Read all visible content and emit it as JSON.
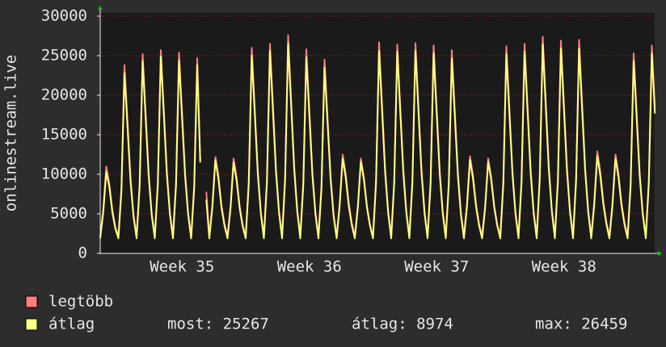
{
  "chart_data": {
    "type": "line",
    "y_label": "onlinestream.live",
    "ylim": [
      0,
      30000
    ],
    "yticks": [
      0,
      5000,
      10000,
      15000,
      20000,
      25000,
      30000
    ],
    "grid": true,
    "categories": [
      null,
      null,
      null,
      null,
      null,
      null,
      null,
      null,
      null,
      null,
      null,
      null,
      null,
      null,
      null,
      null,
      null,
      null,
      null,
      null,
      null,
      null,
      null,
      null,
      null,
      null,
      null,
      "Week 35",
      null,
      null,
      null,
      null,
      null,
      null,
      null,
      null,
      null,
      null,
      null,
      null,
      null,
      null,
      null,
      null,
      null,
      null,
      null,
      null,
      null,
      null,
      null,
      null,
      null,
      null,
      null,
      null,
      null,
      null,
      null,
      null,
      null,
      null,
      null,
      null,
      null,
      null,
      null,
      null,
      null,
      "Week 36",
      null,
      null,
      null,
      null,
      null,
      null,
      null,
      null,
      null,
      null,
      null,
      null,
      null,
      null,
      null,
      null,
      null,
      null,
      null,
      null,
      null,
      null,
      null,
      null,
      null,
      null,
      null,
      null,
      null,
      null,
      null,
      null,
      null,
      null,
      null,
      null,
      null,
      null,
      null,
      null,
      null,
      "Week 37",
      null,
      null,
      null,
      null,
      null,
      null,
      null,
      null,
      null,
      null,
      null,
      null,
      null,
      null,
      null,
      null,
      null,
      null,
      null,
      null,
      null,
      null,
      null,
      null,
      null,
      null,
      null,
      null,
      null,
      null,
      null,
      null,
      null,
      null,
      null,
      null,
      null,
      null,
      null,
      null,
      null,
      "Week 38",
      null,
      null,
      null,
      null,
      null,
      null,
      null,
      null,
      null,
      null,
      null,
      null,
      null,
      null,
      null,
      null,
      null,
      null,
      null,
      null,
      null,
      null,
      null,
      null,
      null,
      null,
      null,
      null,
      null,
      null
    ],
    "series": [
      {
        "name": "legtöbb",
        "color": "#ff7f7f",
        "values": [
          2200,
          5500,
          11000,
          8800,
          5500,
          3300,
          2200,
          8300,
          23800,
          16700,
          9500,
          4800,
          2200,
          8800,
          25200,
          17600,
          10100,
          5000,
          2200,
          9000,
          25700,
          18000,
          10300,
          5100,
          2200,
          8900,
          25400,
          17800,
          10200,
          5100,
          2200,
          8600,
          24700,
          11800,
          null,
          7800,
          2200,
          6100,
          12200,
          9800,
          6100,
          3700,
          2200,
          6000,
          12000,
          9600,
          6000,
          3600,
          2200,
          9100,
          26000,
          18200,
          10400,
          5200,
          2200,
          9300,
          26500,
          18600,
          10600,
          5300,
          2200,
          9700,
          27600,
          19300,
          11000,
          5500,
          2200,
          9000,
          25800,
          18100,
          10300,
          5200,
          2200,
          8600,
          24500,
          17200,
          9800,
          4900,
          2200,
          6300,
          12500,
          10000,
          6300,
          3800,
          2200,
          6000,
          12000,
          9600,
          6000,
          3600,
          2200,
          9300,
          26700,
          18700,
          10700,
          5300,
          2200,
          9200,
          26400,
          18500,
          10600,
          5300,
          2200,
          9300,
          26600,
          18600,
          10600,
          5300,
          2200,
          9200,
          26300,
          18400,
          10500,
          5300,
          2200,
          9000,
          25700,
          18000,
          10300,
          5100,
          2200,
          6200,
          12300,
          9800,
          6200,
          3700,
          2200,
          6000,
          12000,
          9600,
          6000,
          3600,
          2200,
          9200,
          26200,
          18300,
          10500,
          5200,
          2200,
          9300,
          26500,
          18600,
          10600,
          5300,
          2200,
          9600,
          27400,
          19200,
          11000,
          5500,
          2200,
          9400,
          26900,
          18800,
          10800,
          5400,
          2200,
          9500,
          27000,
          18900,
          10800,
          5400,
          2200,
          6500,
          12900,
          10300,
          6500,
          3900,
          2200,
          6300,
          12500,
          10000,
          6300,
          3800,
          2200,
          8900,
          25300,
          17700,
          10100,
          5100,
          2200,
          9200,
          26300,
          18400
        ]
      },
      {
        "name": "átlag",
        "color": "#ffff80",
        "values": [
          1900,
          5200,
          10300,
          8400,
          5200,
          3100,
          1900,
          7900,
          22800,
          16000,
          9100,
          4600,
          1900,
          8400,
          24300,
          17000,
          9700,
          4800,
          1900,
          8600,
          24900,
          17400,
          9900,
          4900,
          1900,
          8500,
          24400,
          17100,
          9800,
          4900,
          1900,
          8200,
          23800,
          11500,
          null,
          6800,
          1900,
          5800,
          11800,
          9400,
          5800,
          3500,
          1900,
          5700,
          11500,
          9200,
          5700,
          3400,
          1900,
          8700,
          25000,
          17500,
          10000,
          5000,
          1900,
          8900,
          25600,
          17900,
          10200,
          5100,
          1900,
          9300,
          26500,
          18600,
          10600,
          5300,
          1900,
          8600,
          24800,
          17400,
          9900,
          5000,
          1900,
          8200,
          23500,
          16500,
          9400,
          4700,
          1900,
          6000,
          12000,
          9600,
          6000,
          3600,
          1900,
          5800,
          11600,
          9300,
          5800,
          3500,
          1900,
          8900,
          25600,
          17900,
          10200,
          5100,
          1900,
          8900,
          25500,
          17800,
          10200,
          5100,
          1900,
          8900,
          25600,
          17900,
          10200,
          5100,
          1900,
          8800,
          25300,
          17700,
          10100,
          5100,
          1900,
          8600,
          24600,
          17200,
          9800,
          4900,
          1900,
          5900,
          11800,
          9400,
          5900,
          3500,
          1900,
          5800,
          11600,
          9300,
          5800,
          3500,
          1900,
          8800,
          25200,
          17600,
          10100,
          5000,
          1900,
          8900,
          25500,
          17900,
          10200,
          5100,
          1900,
          9200,
          26400,
          18500,
          10600,
          5300,
          1900,
          9100,
          25900,
          18100,
          10400,
          5200,
          1900,
          9100,
          25900,
          18100,
          10400,
          5200,
          1900,
          6200,
          12300,
          9800,
          6200,
          3700,
          1900,
          6000,
          12000,
          9600,
          6000,
          3600,
          1900,
          8500,
          24300,
          17000,
          9700,
          4900,
          1900,
          8900,
          25300,
          17700
        ]
      }
    ],
    "stats": [
      "most: 25267",
      "átlag: 8974",
      "max: 26459"
    ]
  }
}
